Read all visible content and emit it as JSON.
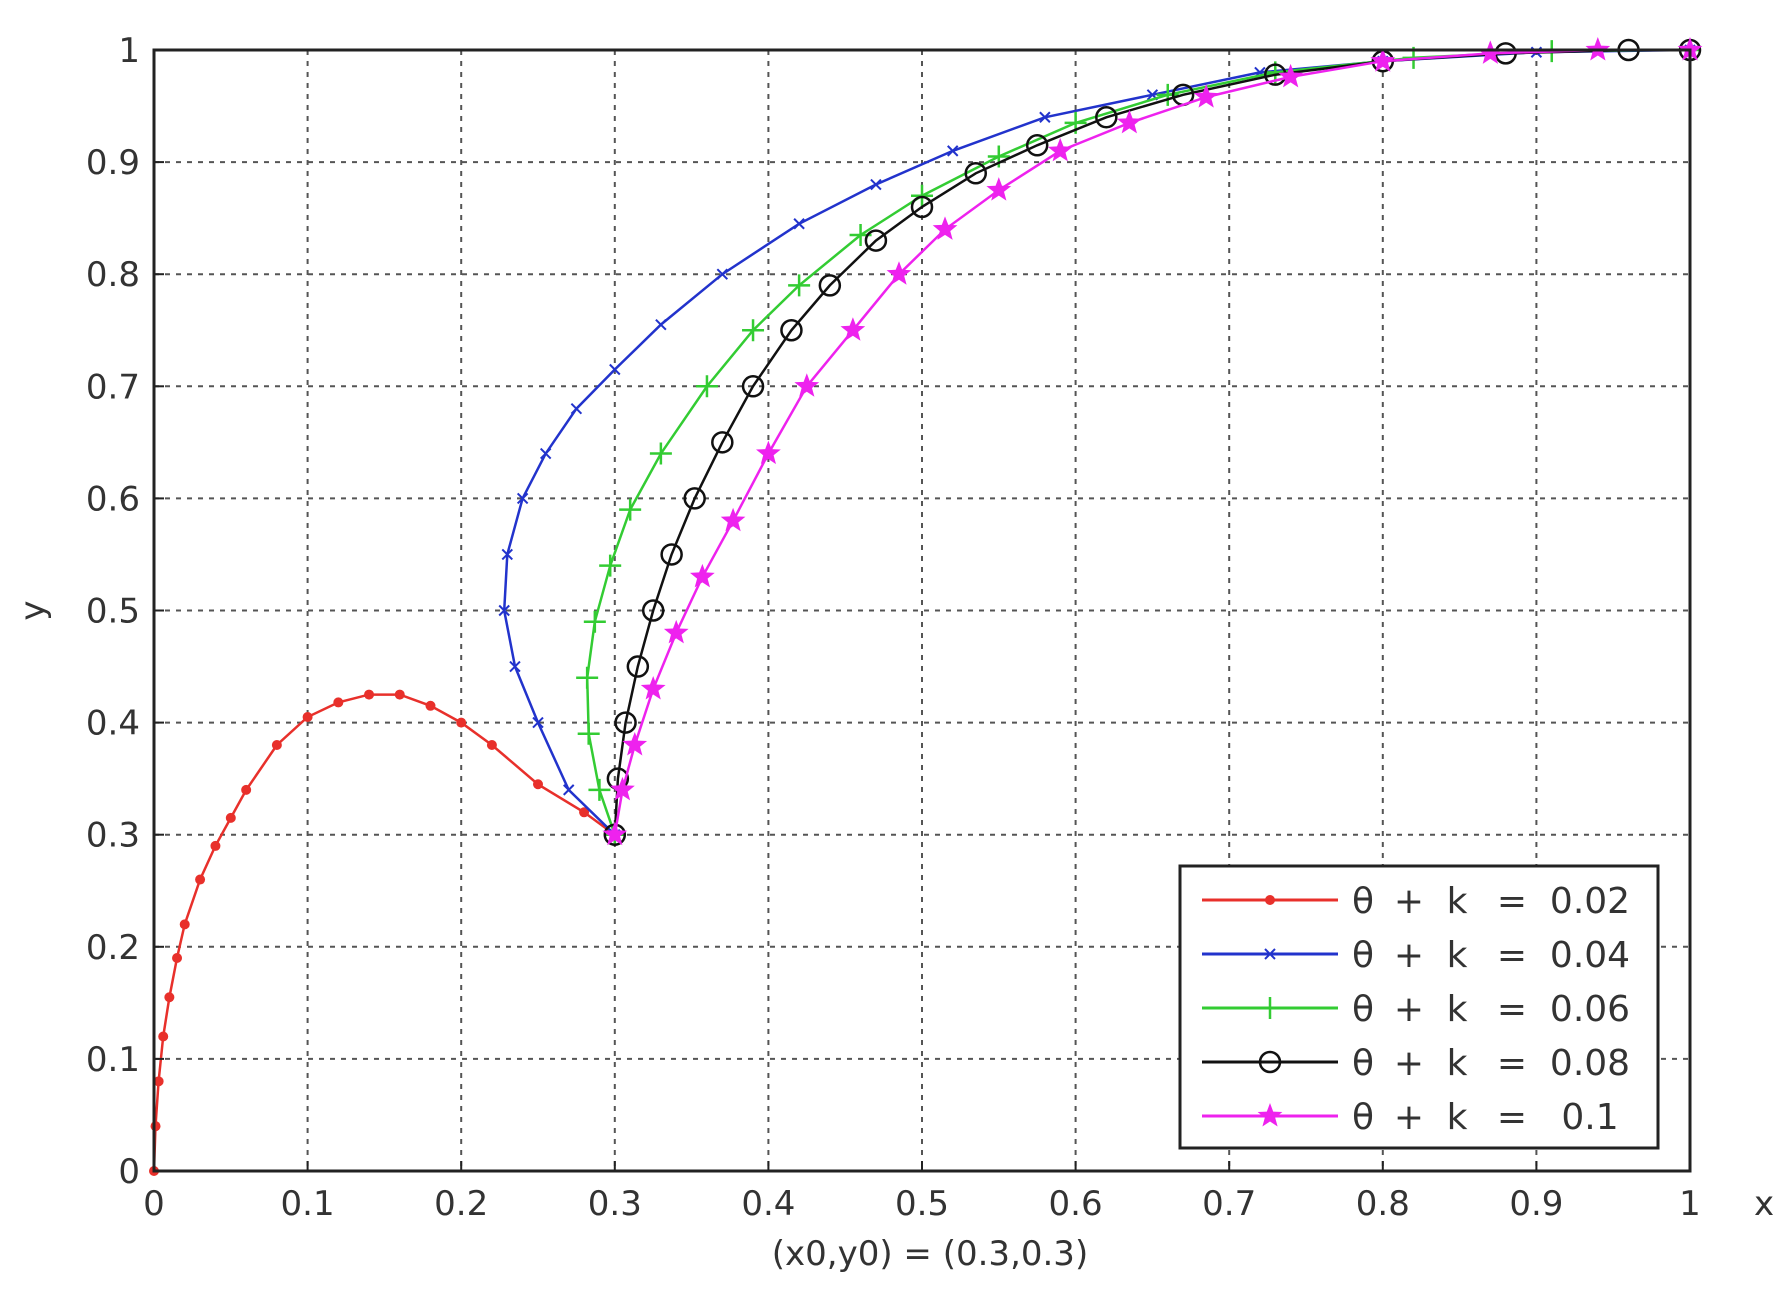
{
  "chart_data": {
    "type": "line",
    "title": "",
    "xlabel": "x",
    "ylabel": "y",
    "subtitle_below_axis": "(x0,y0)  =  (0.3,0.3)",
    "xlim": [
      0,
      1
    ],
    "ylim": [
      0,
      1
    ],
    "xticks": [
      "0",
      "0.1",
      "0.2",
      "0.3",
      "0.4",
      "0.5",
      "0.6",
      "0.7",
      "0.8",
      "0.9",
      "1"
    ],
    "yticks": [
      "0",
      "0.1",
      "0.2",
      "0.3",
      "0.4",
      "0.5",
      "0.6",
      "0.7",
      "0.8",
      "0.9",
      "1"
    ],
    "grid": true,
    "legend_position": "bottom-right",
    "series": [
      {
        "name": "θ + k = 0.02",
        "label_parts": [
          "θ",
          "+",
          "k",
          "=",
          "0.02"
        ],
        "color": "#e8302b",
        "marker": "dot",
        "x": [
          0.3,
          0.28,
          0.25,
          0.22,
          0.2,
          0.18,
          0.16,
          0.14,
          0.12,
          0.1,
          0.08,
          0.06,
          0.05,
          0.04,
          0.03,
          0.02,
          0.015,
          0.01,
          0.006,
          0.003,
          0.001,
          0.0
        ],
        "y": [
          0.3,
          0.32,
          0.345,
          0.38,
          0.4,
          0.415,
          0.425,
          0.425,
          0.418,
          0.405,
          0.38,
          0.34,
          0.315,
          0.29,
          0.26,
          0.22,
          0.19,
          0.155,
          0.12,
          0.08,
          0.04,
          0.0
        ]
      },
      {
        "name": "θ + k = 0.04",
        "label_parts": [
          "θ",
          "+",
          "k",
          "=",
          "0.04"
        ],
        "color": "#2233cc",
        "marker": "x",
        "x": [
          0.3,
          0.27,
          0.25,
          0.235,
          0.228,
          0.23,
          0.24,
          0.255,
          0.275,
          0.3,
          0.33,
          0.37,
          0.42,
          0.47,
          0.52,
          0.58,
          0.65,
          0.72,
          0.8,
          0.9,
          1.0
        ],
        "y": [
          0.3,
          0.34,
          0.4,
          0.45,
          0.5,
          0.55,
          0.6,
          0.64,
          0.68,
          0.715,
          0.755,
          0.8,
          0.845,
          0.88,
          0.91,
          0.94,
          0.96,
          0.98,
          0.99,
          0.998,
          1.0
        ]
      },
      {
        "name": "θ + k = 0.06",
        "label_parts": [
          "θ",
          "+",
          "k",
          "=",
          "0.06"
        ],
        "color": "#33cc33",
        "marker": "plus",
        "x": [
          0.3,
          0.29,
          0.283,
          0.282,
          0.287,
          0.297,
          0.31,
          0.33,
          0.36,
          0.39,
          0.42,
          0.46,
          0.5,
          0.55,
          0.6,
          0.66,
          0.73,
          0.82,
          0.91,
          1.0
        ],
        "y": [
          0.3,
          0.34,
          0.39,
          0.44,
          0.49,
          0.54,
          0.59,
          0.64,
          0.7,
          0.75,
          0.79,
          0.835,
          0.87,
          0.905,
          0.935,
          0.96,
          0.98,
          0.993,
          0.999,
          1.0
        ]
      },
      {
        "name": "θ + k = 0.08",
        "label_parts": [
          "θ",
          "+",
          "k",
          "=",
          "0.08"
        ],
        "color": "#111111",
        "marker": "circle",
        "x": [
          0.3,
          0.302,
          0.307,
          0.315,
          0.325,
          0.337,
          0.352,
          0.37,
          0.39,
          0.415,
          0.44,
          0.47,
          0.5,
          0.535,
          0.575,
          0.62,
          0.67,
          0.73,
          0.8,
          0.88,
          0.96,
          1.0
        ],
        "y": [
          0.3,
          0.35,
          0.4,
          0.45,
          0.5,
          0.55,
          0.6,
          0.65,
          0.7,
          0.75,
          0.79,
          0.83,
          0.86,
          0.89,
          0.915,
          0.94,
          0.96,
          0.978,
          0.99,
          0.997,
          1.0,
          1.0
        ]
      },
      {
        "name": "θ + k = 0.1",
        "label_parts": [
          "θ",
          "+",
          "k",
          "=",
          "0.1"
        ],
        "color": "#ee22ee",
        "marker": "star",
        "x": [
          0.3,
          0.305,
          0.313,
          0.325,
          0.34,
          0.357,
          0.377,
          0.4,
          0.425,
          0.455,
          0.485,
          0.515,
          0.55,
          0.59,
          0.635,
          0.685,
          0.74,
          0.8,
          0.87,
          0.94,
          1.0
        ],
        "y": [
          0.3,
          0.34,
          0.38,
          0.43,
          0.48,
          0.53,
          0.58,
          0.64,
          0.7,
          0.75,
          0.8,
          0.84,
          0.875,
          0.91,
          0.935,
          0.958,
          0.976,
          0.99,
          0.997,
          1.0,
          1.0
        ]
      }
    ]
  }
}
